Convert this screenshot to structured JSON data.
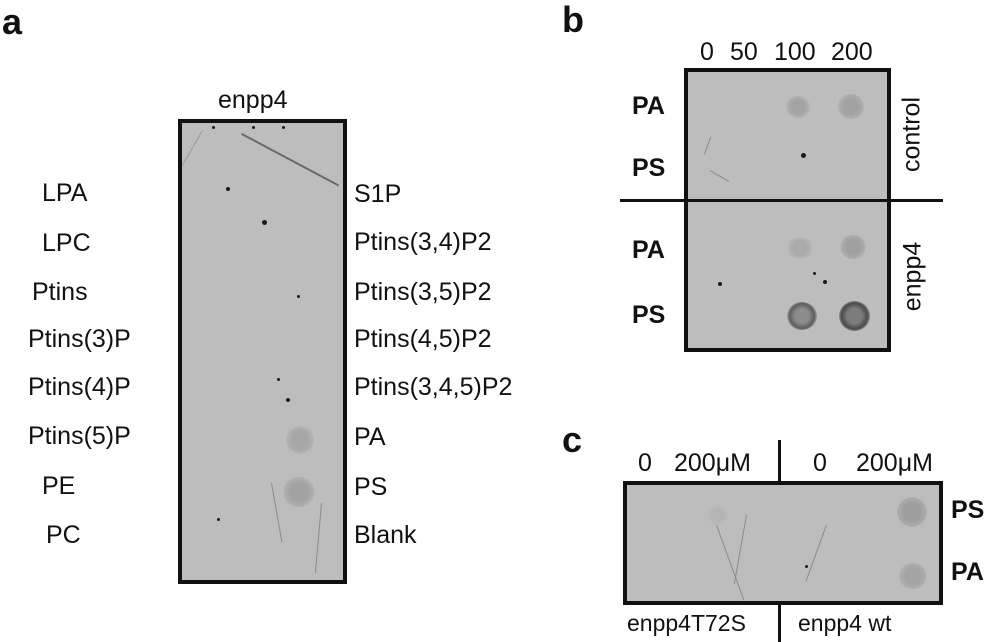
{
  "panel_a": {
    "letter": "a",
    "membrane_label": "enpp4",
    "left_labels": [
      "LPA",
      "LPC",
      "Ptins",
      "Ptins(3)P",
      "Ptins(4)P",
      "Ptins(5)P",
      "PE",
      "PC"
    ],
    "right_labels": [
      "S1P",
      "Ptins(3,4)P2",
      "Ptins(3,5)P2",
      "Ptins(4,5)P2",
      "Ptins(3,4,5)P2",
      "PA",
      "PS",
      "Blank"
    ]
  },
  "panel_b": {
    "letter": "b",
    "concentrations": [
      "0",
      "50",
      "100",
      "200"
    ],
    "row_labels_top": [
      "PA",
      "PS"
    ],
    "row_labels_bottom": [
      "PA",
      "PS"
    ],
    "group_top": "control",
    "group_bottom": "enpp4"
  },
  "panel_c": {
    "letter": "c",
    "concentrations_left": [
      "0",
      "200μM"
    ],
    "concentrations_right": [
      "0",
      "200μM"
    ],
    "row_labels": [
      "PS",
      "PA"
    ],
    "bottom_left": "enpp4T72S",
    "bottom_right": "enpp4 wt"
  },
  "colors": {
    "membrane": "#bdbdbd",
    "border": "#111111",
    "spot": "#9a9a9a",
    "spot_dark": "#6e6e6e"
  }
}
